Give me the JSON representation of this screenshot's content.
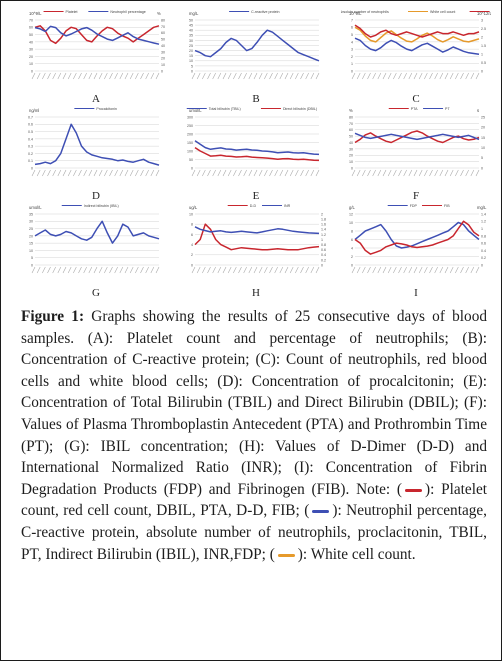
{
  "figure_label": "Figure 1:",
  "caption_intro": "Graphs showing the results of 25 consecutive days of blood samples. (A): Platelet count and percentage of neutrophils; (B): Concentration of C-reactive protein; (C): Count of neutrophils, red blood cells and white blood cells; (D): Concentration of procalcitonin; (E): Concentration of Total Bilirubin (TBIL) and Direct Bilirubin (DBIL); (F): Values of Plasma Thromboplastin Antecedent (PTA) and Prothrombin Time (PT); (G): IBIL concentration; (H): Values of D-Dimer (D-D) and International Normalized Ratio (INR); (I): Concentration of Fibrin Degradation Products (FDP) and Fibrinogen (FIB). Note: (",
  "caption_red": "): Platelet count, red cell count, DBIL, PTA, D-D, FIB; (",
  "caption_blue": "): Neutrophil percentage, C-reactive protein, absolute number of neutrophils, proclacitonin, TBIL, PT, Indirect Bilirubin (IBIL), INR,FDP; (",
  "caption_orange": "): White cell count.",
  "colors": {
    "red": "#c8262e",
    "blue": "#3e4fb4",
    "orange": "#e69a2b",
    "grid": "#c8c8c8",
    "axis": "#888888"
  },
  "chart_data": [
    {
      "panel": "A",
      "type": "line",
      "legend": [
        "Platelet",
        "Neutrophil percentage"
      ],
      "y_left_unit": "10^9/L",
      "y_right_unit": "%",
      "ylim_left": [
        0,
        70
      ],
      "ylim_right": [
        0,
        80
      ],
      "yticks_left": [
        "70",
        "60",
        "50",
        "40",
        "30",
        "20",
        "10",
        "0"
      ],
      "yticks_right": [
        "80",
        "70",
        "60",
        "50",
        "40",
        "30",
        "20",
        "10",
        "0"
      ],
      "series": [
        {
          "name": "Platelet",
          "color": "red",
          "axis": "left",
          "values": [
            60,
            62,
            55,
            42,
            38,
            45,
            55,
            60,
            58,
            50,
            42,
            40,
            48,
            55,
            60,
            58,
            52,
            48,
            45,
            40,
            45,
            50,
            55,
            60,
            62
          ]
        },
        {
          "name": "Neutrophil percentage",
          "color": "blue",
          "axis": "right",
          "values": [
            68,
            66,
            62,
            70,
            68,
            60,
            55,
            58,
            62,
            66,
            68,
            64,
            58,
            54,
            50,
            48,
            52,
            56,
            60,
            54,
            50,
            48,
            46,
            44,
            42
          ]
        }
      ]
    },
    {
      "panel": "B",
      "type": "line",
      "legend": [
        "C-reactive protein"
      ],
      "y_left_unit": "mg/L",
      "ylim_left": [
        0,
        50
      ],
      "yticks_left": [
        "50",
        "45",
        "40",
        "35",
        "30",
        "25",
        "20",
        "15",
        "10",
        "5",
        "0"
      ],
      "series": [
        {
          "name": "C-reactive protein",
          "color": "blue",
          "axis": "left",
          "values": [
            20,
            18,
            15,
            14,
            18,
            22,
            28,
            32,
            30,
            25,
            20,
            22,
            28,
            35,
            40,
            38,
            34,
            30,
            26,
            22,
            18,
            16,
            14,
            12,
            10
          ]
        }
      ]
    },
    {
      "panel": "C",
      "type": "line",
      "legend": [
        "Absolute number of neutrophils",
        "White cell count",
        "Red cell count"
      ],
      "y_left_unit": "10^9/L",
      "y_right_unit": "10^12/L",
      "ylim_left": [
        0,
        7
      ],
      "ylim_right": [
        0,
        3
      ],
      "yticks_left": [
        "7",
        "6",
        "5",
        "4",
        "3",
        "2",
        "1",
        "0"
      ],
      "yticks_right": [
        "3",
        "2.5",
        "2",
        "1.5",
        "1",
        "0.5",
        "0"
      ],
      "series": [
        {
          "name": "Absolute number of neutrophils",
          "color": "blue",
          "axis": "left",
          "values": [
            4.5,
            4.2,
            3.5,
            3.0,
            2.8,
            3.2,
            3.8,
            4.2,
            3.9,
            3.4,
            3.0,
            2.8,
            3.2,
            3.6,
            3.8,
            3.4,
            3.0,
            2.6,
            2.9,
            3.3,
            3.0,
            2.7,
            2.5,
            2.4,
            2.3
          ]
        },
        {
          "name": "White cell count",
          "color": "orange",
          "axis": "left",
          "values": [
            6.0,
            5.6,
            4.8,
            4.2,
            4.0,
            4.6,
            5.2,
            5.5,
            5.0,
            4.5,
            4.1,
            4.0,
            4.4,
            4.9,
            5.2,
            4.8,
            4.3,
            4.0,
            4.3,
            4.7,
            4.4,
            4.1,
            4.0,
            4.2,
            4.4
          ]
        },
        {
          "name": "Red cell count",
          "color": "red",
          "axis": "right",
          "values": [
            2.7,
            2.5,
            2.2,
            2.0,
            2.1,
            2.3,
            2.4,
            2.2,
            2.1,
            2.2,
            2.3,
            2.2,
            2.1,
            2.0,
            2.1,
            2.2,
            2.3,
            2.2,
            2.2,
            2.3,
            2.2,
            2.1,
            2.2,
            2.2,
            2.3
          ]
        }
      ]
    },
    {
      "panel": "D",
      "type": "line",
      "legend": [
        "Procalcitonin"
      ],
      "y_left_unit": "ng/ml",
      "ylim_left": [
        0,
        0.7
      ],
      "yticks_left": [
        "0.7",
        "0.6",
        "0.5",
        "0.4",
        "0.3",
        "0.2",
        "0.1",
        "0"
      ],
      "series": [
        {
          "name": "Procalcitonin",
          "color": "blue",
          "axis": "left",
          "values": [
            0.05,
            0.06,
            0.08,
            0.06,
            0.1,
            0.2,
            0.4,
            0.6,
            0.48,
            0.3,
            0.22,
            0.18,
            0.16,
            0.14,
            0.13,
            0.12,
            0.1,
            0.11,
            0.09,
            0.08,
            0.1,
            0.12,
            0.08,
            0.06,
            0.04
          ]
        }
      ]
    },
    {
      "panel": "E",
      "type": "line",
      "legend": [
        "Total bilirubin (TBIL)",
        "Direct bilirubin (DBIL)"
      ],
      "y_left_unit": "umol/L",
      "ylim_left": [
        0,
        300
      ],
      "yticks_left": [
        "300",
        "250",
        "200",
        "150",
        "100",
        "50",
        "0"
      ],
      "series": [
        {
          "name": "Total bilirubin (TBIL)",
          "color": "blue",
          "axis": "left",
          "values": [
            160,
            140,
            120,
            110,
            115,
            118,
            112,
            110,
            105,
            108,
            110,
            106,
            104,
            100,
            98,
            95,
            90,
            92,
            94,
            90,
            88,
            90,
            85,
            82,
            80
          ]
        },
        {
          "name": "Direct bilirubin (DBIL)",
          "color": "red",
          "axis": "left",
          "values": [
            120,
            100,
            85,
            70,
            72,
            75,
            70,
            68,
            65,
            66,
            68,
            64,
            62,
            60,
            58,
            55,
            52,
            54,
            55,
            52,
            50,
            52,
            48,
            46,
            45
          ]
        }
      ]
    },
    {
      "panel": "F",
      "type": "line",
      "legend": [
        "PTA",
        "PT"
      ],
      "y_left_unit": "%",
      "y_right_unit": "s",
      "ylim_left": [
        0,
        80
      ],
      "ylim_right": [
        0,
        25
      ],
      "yticks_left": [
        "80",
        "70",
        "60",
        "50",
        "40",
        "30",
        "20",
        "10",
        "0"
      ],
      "yticks_right": [
        "25",
        "20",
        "15",
        "10",
        "5",
        "0"
      ],
      "series": [
        {
          "name": "PTA",
          "color": "red",
          "axis": "left",
          "values": [
            40,
            45,
            52,
            55,
            50,
            46,
            42,
            40,
            44,
            48,
            52,
            56,
            58,
            55,
            50,
            46,
            42,
            40,
            44,
            48,
            50,
            46,
            44,
            45,
            48
          ]
        },
        {
          "name": "PT",
          "color": "blue",
          "axis": "right",
          "values": [
            17,
            16,
            15,
            14.5,
            15,
            15.5,
            16,
            16.5,
            16,
            15.5,
            15,
            14.5,
            14,
            14.5,
            15,
            15.5,
            16,
            16.5,
            16,
            15.5,
            15,
            15.5,
            16,
            15,
            14
          ]
        }
      ]
    },
    {
      "panel": "G",
      "type": "line",
      "legend": [
        "Indirect bilirubin (IBIL)"
      ],
      "y_left_unit": "umol/L",
      "ylim_left": [
        0,
        35
      ],
      "yticks_left": [
        "35",
        "30",
        "25",
        "20",
        "15",
        "10",
        "5",
        "0"
      ],
      "series": [
        {
          "name": "Indirect bilirubin (IBIL)",
          "color": "blue",
          "axis": "left",
          "values": [
            20,
            22,
            24,
            21,
            20,
            21,
            23,
            22,
            20,
            18,
            17,
            19,
            25,
            30,
            22,
            15,
            20,
            28,
            26,
            20,
            21,
            22,
            20,
            19,
            18
          ]
        }
      ]
    },
    {
      "panel": "H",
      "type": "line",
      "legend": [
        "D-D",
        "INR"
      ],
      "y_left_unit": "ug/L",
      "y_right_unit": "",
      "ylim_left": [
        0,
        10
      ],
      "ylim_right": [
        0,
        2
      ],
      "yticks_left": [
        "10",
        "8",
        "6",
        "4",
        "2",
        "0"
      ],
      "yticks_right": [
        "2",
        "1.8",
        "1.6",
        "1.4",
        "1.2",
        "1",
        "0.8",
        "0.6",
        "0.4",
        "0.2",
        "0"
      ],
      "series": [
        {
          "name": "D-D",
          "color": "red",
          "axis": "left",
          "values": [
            4,
            5,
            8,
            7,
            5,
            4,
            3.5,
            3,
            3.2,
            3.4,
            3.3,
            3.2,
            3.1,
            3,
            3,
            3.1,
            3.2,
            3.1,
            3,
            3,
            3,
            3.2,
            3.4,
            3.5,
            3.6
          ]
        },
        {
          "name": "INR",
          "color": "blue",
          "axis": "right",
          "values": [
            1.5,
            1.4,
            1.35,
            1.3,
            1.32,
            1.34,
            1.3,
            1.28,
            1.3,
            1.32,
            1.3,
            1.28,
            1.26,
            1.3,
            1.34,
            1.38,
            1.42,
            1.4,
            1.36,
            1.32,
            1.3,
            1.28,
            1.26,
            1.25,
            1.24
          ]
        }
      ]
    },
    {
      "panel": "I",
      "type": "line",
      "legend": [
        "FDP",
        "FIB"
      ],
      "y_left_unit": "g/L",
      "y_right_unit": "mg/L",
      "ylim_left": [
        0,
        12
      ],
      "ylim_right": [
        0,
        1.4
      ],
      "yticks_left": [
        "12",
        "10",
        "8",
        "6",
        "4",
        "2",
        "0"
      ],
      "yticks_right": [
        "1.4",
        "1.2",
        "1",
        "0.8",
        "0.6",
        "0.4",
        "0.2",
        "0"
      ],
      "series": [
        {
          "name": "FDP",
          "color": "blue",
          "axis": "left",
          "values": [
            6,
            7,
            8,
            8.5,
            9,
            9.5,
            8,
            6,
            4.5,
            4,
            4.2,
            4.5,
            5,
            5.5,
            6,
            6.5,
            7,
            7.5,
            8,
            9,
            10,
            9.5,
            8,
            7,
            6
          ]
        },
        {
          "name": "FIB",
          "color": "red",
          "axis": "right",
          "values": [
            0.7,
            0.6,
            0.4,
            0.3,
            0.35,
            0.4,
            0.5,
            0.55,
            0.6,
            0.58,
            0.55,
            0.5,
            0.48,
            0.5,
            0.52,
            0.55,
            0.6,
            0.65,
            0.7,
            0.8,
            1.0,
            1.2,
            1.1,
            0.9,
            0.8
          ]
        }
      ]
    }
  ]
}
